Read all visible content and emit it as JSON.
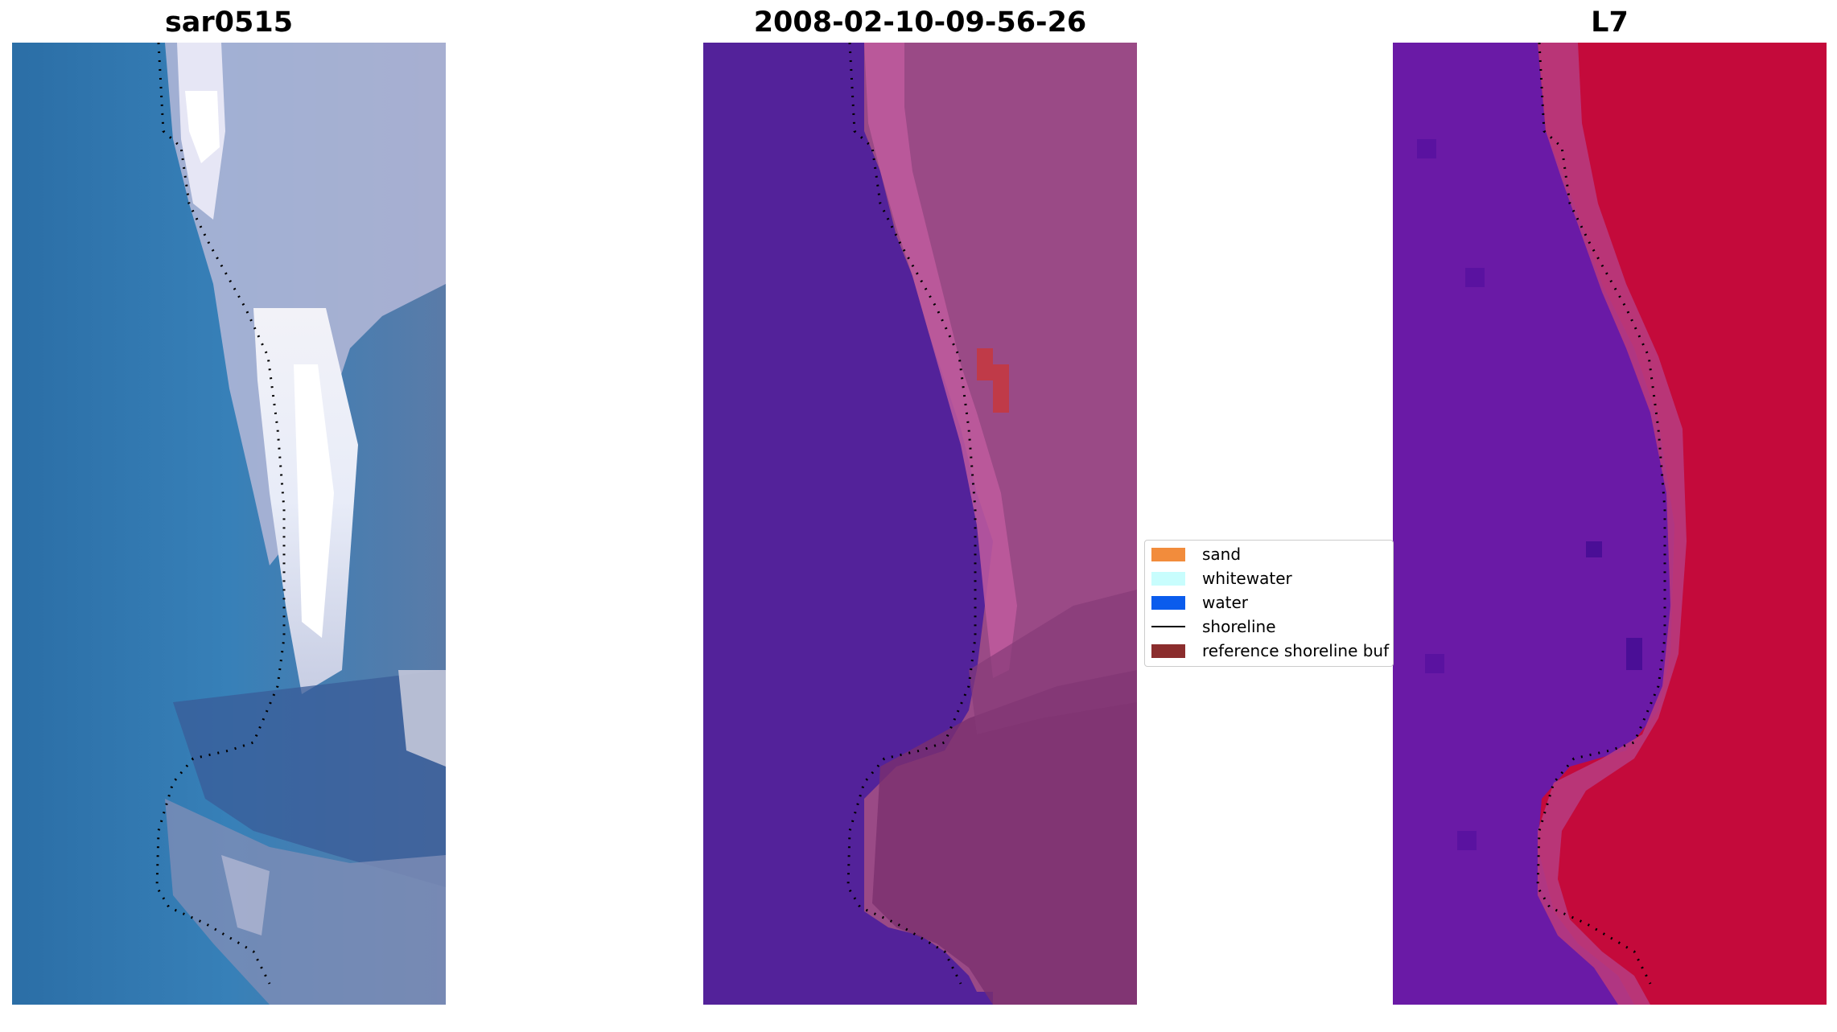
{
  "panels": [
    {
      "title": "sar0515"
    },
    {
      "title": "2008-02-10-09-56-26"
    },
    {
      "title": "L7"
    }
  ],
  "legend": {
    "items": [
      {
        "label": "sand",
        "color": "#f28c3c",
        "kind": "patch"
      },
      {
        "label": "whitewater",
        "color": "#c8fdfd",
        "kind": "patch"
      },
      {
        "label": "water",
        "color": "#0a5ced",
        "kind": "patch"
      },
      {
        "label": "shoreline",
        "color": "#000000",
        "kind": "line"
      },
      {
        "label": "reference shoreline buf",
        "color": "#8b2d2d",
        "kind": "patch"
      }
    ]
  },
  "colors": {
    "water_rgb": "#2f78b0",
    "whitewater_rgb": "#dde2f2",
    "class_water": "#53229a",
    "class_land": "#9a4a86",
    "class_buffer_edge": "#c0397a",
    "index_low": "#6a1aa6",
    "index_high": "#c40a3b"
  }
}
